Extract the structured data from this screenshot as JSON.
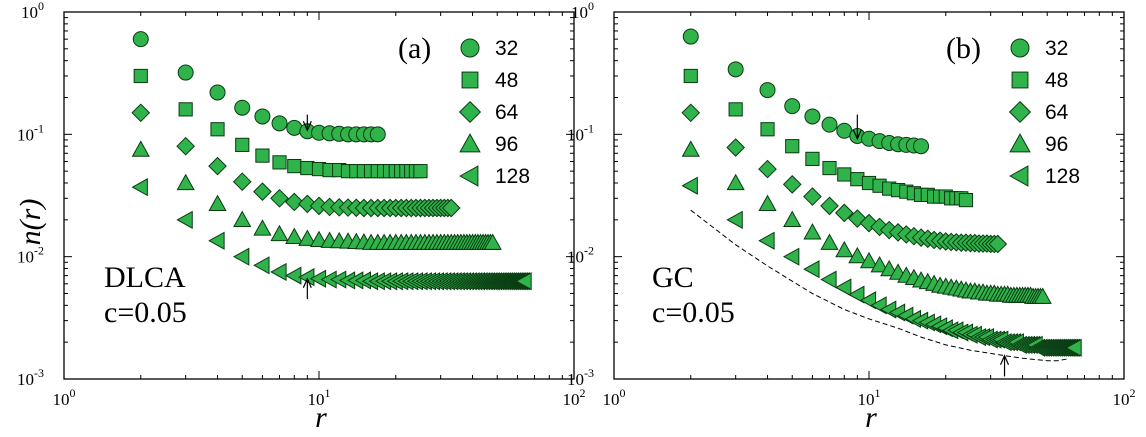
{
  "y_axis_label": "n(r)",
  "x_axis_label": "r",
  "chart_data": [
    {
      "type": "scatter",
      "panel_label": "(a)",
      "annotation": [
        "DLCA",
        "c=0.05"
      ],
      "x_scale": "log",
      "y_scale": "log",
      "xlim": [
        1,
        100
      ],
      "ylim": [
        0.001,
        1
      ],
      "x_ticks": [
        1,
        10,
        100
      ],
      "y_ticks": [
        0.001,
        0.01,
        0.1,
        1
      ],
      "legend_placement": "top-right",
      "grid": false,
      "series": [
        {
          "name": "32",
          "marker": "circle",
          "x_start": 2,
          "x_end": 17,
          "x": [
            2,
            3,
            4,
            5,
            6,
            7,
            8,
            9,
            10,
            11,
            12,
            13,
            14,
            15,
            16,
            17
          ],
          "y": [
            0.6,
            0.32,
            0.22,
            0.165,
            0.14,
            0.123,
            0.113,
            0.106,
            0.103,
            0.102,
            0.101,
            0.1,
            0.1,
            0.1,
            0.1,
            0.1
          ]
        },
        {
          "name": "48",
          "marker": "square",
          "x_start": 2,
          "x_end": 25,
          "x": [
            2,
            3,
            4,
            5,
            6,
            7,
            8,
            9,
            10,
            11,
            12,
            13,
            14,
            15,
            16,
            17,
            18,
            19,
            20,
            21,
            22,
            23,
            24,
            25
          ],
          "y": [
            0.3,
            0.16,
            0.11,
            0.082,
            0.067,
            0.059,
            0.055,
            0.053,
            0.052,
            0.051,
            0.051,
            0.05,
            0.05,
            0.05,
            0.05,
            0.05,
            0.05,
            0.05,
            0.05,
            0.05,
            0.05,
            0.05,
            0.05,
            0.05
          ]
        },
        {
          "name": "64",
          "marker": "diamond",
          "x_start": 2,
          "x_end": 33,
          "x": [
            2,
            3,
            4,
            5,
            6,
            7,
            8,
            9,
            10,
            11,
            12,
            13,
            14,
            15,
            16,
            17,
            18,
            19,
            20,
            21,
            22,
            23,
            24,
            25,
            26,
            27,
            28,
            29,
            30,
            31,
            32,
            33
          ],
          "y": [
            0.15,
            0.08,
            0.055,
            0.041,
            0.034,
            0.03,
            0.028,
            0.027,
            0.026,
            0.0255,
            0.0253,
            0.0252,
            0.0251,
            0.025,
            0.025,
            0.025,
            0.025,
            0.025,
            0.025,
            0.025,
            0.025,
            0.025,
            0.025,
            0.025,
            0.025,
            0.025,
            0.025,
            0.025,
            0.025,
            0.025,
            0.025,
            0.025
          ]
        },
        {
          "name": "96",
          "marker": "triangle-up",
          "x_start": 2,
          "x_end": 48,
          "x": [
            2,
            3,
            4,
            5,
            6,
            7,
            8,
            9,
            10,
            11,
            12,
            13,
            14,
            15,
            16,
            17,
            18,
            19,
            20,
            21,
            22,
            23,
            24,
            25,
            26,
            27,
            28,
            29,
            30,
            31,
            32,
            33,
            34,
            35,
            36,
            37,
            38,
            39,
            40,
            41,
            42,
            43,
            44,
            45,
            46,
            47,
            48
          ],
          "y": [
            0.075,
            0.04,
            0.027,
            0.02,
            0.017,
            0.0153,
            0.0145,
            0.014,
            0.0137,
            0.0135,
            0.0134,
            0.0133,
            0.0132,
            0.0131,
            0.013,
            0.013,
            0.013,
            0.013,
            0.013,
            0.013,
            0.013,
            0.013,
            0.013,
            0.013,
            0.013,
            0.013,
            0.013,
            0.013,
            0.013,
            0.013,
            0.013,
            0.013,
            0.013,
            0.013,
            0.013,
            0.013,
            0.013,
            0.013,
            0.013,
            0.013,
            0.013,
            0.013,
            0.013,
            0.013,
            0.013,
            0.013,
            0.013
          ]
        },
        {
          "name": "128",
          "marker": "triangle-left",
          "x_start": 2,
          "x_end": 64,
          "x": [
            2,
            3,
            4,
            5,
            6,
            7,
            8,
            9,
            10,
            11,
            12,
            13,
            14,
            15,
            16,
            17,
            18,
            19,
            20,
            21,
            22,
            23,
            24,
            25,
            26,
            27,
            28,
            29,
            30,
            31,
            32,
            33,
            34,
            35,
            36,
            37,
            38,
            39,
            40,
            41,
            42,
            43,
            44,
            45,
            46,
            47,
            48,
            49,
            50,
            51,
            52,
            53,
            54,
            55,
            56,
            57,
            58,
            59,
            60,
            61,
            62,
            63,
            64
          ],
          "y": [
            0.037,
            0.02,
            0.0135,
            0.01,
            0.0085,
            0.0075,
            0.007,
            0.0068,
            0.0066,
            0.0065,
            0.0065,
            0.0064,
            0.0064,
            0.0064,
            0.0063,
            0.0063,
            0.0063,
            0.0063,
            0.0063,
            0.0063,
            0.0063,
            0.0063,
            0.0063,
            0.0063,
            0.0063,
            0.0063,
            0.0063,
            0.0063,
            0.0063,
            0.0063,
            0.0063,
            0.0063,
            0.0063,
            0.0063,
            0.0063,
            0.0063,
            0.0063,
            0.0063,
            0.0063,
            0.0063,
            0.0063,
            0.0063,
            0.0063,
            0.0063,
            0.0063,
            0.0063,
            0.0063,
            0.0063,
            0.0063,
            0.0063,
            0.0063,
            0.0063,
            0.0063,
            0.0063,
            0.0063,
            0.0063,
            0.0063,
            0.0063,
            0.0063,
            0.0063,
            0.0063,
            0.0063,
            0.0063
          ]
        }
      ],
      "arrows": [
        {
          "x": 9,
          "y_tail": 0.145,
          "y_head": 0.108,
          "direction": "down"
        },
        {
          "x": 9,
          "y_tail": 0.0045,
          "y_head": 0.0066,
          "direction": "up"
        }
      ]
    },
    {
      "type": "scatter",
      "panel_label": "(b)",
      "annotation": [
        "GC",
        "c=0.05"
      ],
      "x_scale": "log",
      "y_scale": "log",
      "xlim": [
        1,
        100
      ],
      "ylim": [
        0.001,
        1
      ],
      "x_ticks": [
        1,
        10,
        100
      ],
      "y_ticks": [
        0.001,
        0.01,
        0.1,
        1
      ],
      "legend_placement": "top-right",
      "grid": false,
      "series": [
        {
          "name": "32",
          "marker": "circle",
          "x": [
            2,
            3,
            4,
            5,
            6,
            7,
            8,
            9,
            10,
            11,
            12,
            13,
            14,
            15,
            16
          ],
          "y": [
            0.63,
            0.34,
            0.23,
            0.17,
            0.14,
            0.12,
            0.107,
            0.097,
            0.092,
            0.088,
            0.085,
            0.083,
            0.082,
            0.081,
            0.08
          ]
        },
        {
          "name": "48",
          "marker": "square",
          "x": [
            2,
            3,
            4,
            5,
            6,
            7,
            8,
            9,
            10,
            11,
            12,
            13,
            14,
            15,
            16,
            17,
            18,
            19,
            20,
            21,
            22,
            23,
            24
          ],
          "y": [
            0.3,
            0.16,
            0.11,
            0.08,
            0.063,
            0.053,
            0.047,
            0.043,
            0.04,
            0.038,
            0.036,
            0.035,
            0.034,
            0.033,
            0.032,
            0.032,
            0.031,
            0.031,
            0.031,
            0.03,
            0.03,
            0.03,
            0.029
          ]
        },
        {
          "name": "64",
          "marker": "diamond",
          "x": [
            2,
            3,
            4,
            5,
            6,
            7,
            8,
            9,
            10,
            11,
            12,
            13,
            14,
            15,
            16,
            17,
            18,
            19,
            20,
            21,
            22,
            23,
            24,
            25,
            26,
            27,
            28,
            29,
            30,
            31,
            32
          ],
          "y": [
            0.15,
            0.078,
            0.052,
            0.039,
            0.031,
            0.026,
            0.0228,
            0.0205,
            0.0188,
            0.0175,
            0.0165,
            0.0158,
            0.0152,
            0.0147,
            0.0143,
            0.014,
            0.0137,
            0.0135,
            0.0133,
            0.0132,
            0.0131,
            0.013,
            0.013,
            0.0129,
            0.0129,
            0.0128,
            0.0128,
            0.0128,
            0.0127,
            0.0127,
            0.0127
          ]
        },
        {
          "name": "96",
          "marker": "triangle-up",
          "x": [
            2,
            3,
            4,
            5,
            6,
            7,
            8,
            9,
            10,
            11,
            12,
            13,
            14,
            15,
            16,
            17,
            18,
            19,
            20,
            21,
            22,
            23,
            24,
            25,
            26,
            27,
            28,
            29,
            30,
            31,
            32,
            33,
            34,
            35,
            36,
            37,
            38,
            39,
            40,
            41,
            42,
            43,
            44,
            45,
            46,
            47,
            48
          ],
          "y": [
            0.075,
            0.04,
            0.027,
            0.02,
            0.0158,
            0.013,
            0.0113,
            0.0101,
            0.0092,
            0.0085,
            0.0079,
            0.0074,
            0.007,
            0.0067,
            0.0064,
            0.0062,
            0.006,
            0.0058,
            0.0057,
            0.0056,
            0.0055,
            0.0054,
            0.0053,
            0.0052,
            0.0052,
            0.0051,
            0.0051,
            0.005,
            0.005,
            0.005,
            0.0049,
            0.0049,
            0.0049,
            0.0049,
            0.0048,
            0.0048,
            0.0048,
            0.0048,
            0.0048,
            0.0048,
            0.0048,
            0.0048,
            0.0047,
            0.0047,
            0.0047,
            0.0047,
            0.0047
          ]
        },
        {
          "name": "128",
          "marker": "triangle-left",
          "x": [
            2,
            3,
            4,
            5,
            6,
            7,
            8,
            9,
            10,
            11,
            12,
            13,
            14,
            15,
            16,
            17,
            18,
            19,
            20,
            21,
            22,
            23,
            24,
            25,
            26,
            27,
            28,
            29,
            30,
            31,
            32,
            33,
            34,
            35,
            36,
            37,
            38,
            39,
            40,
            41,
            42,
            43,
            44,
            45,
            46,
            47,
            48,
            49,
            50,
            51,
            52,
            53,
            54,
            55,
            56,
            57,
            58,
            59,
            60,
            61,
            62,
            63,
            64
          ],
          "y": [
            0.038,
            0.02,
            0.0135,
            0.01,
            0.0079,
            0.0065,
            0.0056,
            0.0049,
            0.0044,
            0.004,
            0.0037,
            0.0035,
            0.0033,
            0.0031,
            0.003,
            0.0029,
            0.0028,
            0.0027,
            0.0026,
            0.0025,
            0.0025,
            0.0024,
            0.0024,
            0.0023,
            0.0023,
            0.0022,
            0.0022,
            0.0022,
            0.0021,
            0.0021,
            0.0021,
            0.0021,
            0.002,
            0.002,
            0.002,
            0.002,
            0.002,
            0.0019,
            0.0019,
            0.0019,
            0.0019,
            0.0019,
            0.0019,
            0.0019,
            0.0018,
            0.0018,
            0.0018,
            0.0018,
            0.0018,
            0.0018,
            0.0018,
            0.0018,
            0.0018,
            0.0018,
            0.0018,
            0.0018,
            0.0018,
            0.0018,
            0.0018,
            0.0018,
            0.0018,
            0.0018,
            0.0018
          ]
        }
      ],
      "dashed_curve": {
        "x": [
          2,
          3,
          4,
          5,
          6,
          8,
          10,
          13,
          16,
          20,
          25,
          30,
          35,
          40,
          45,
          50,
          55,
          60
        ],
        "y": [
          0.024,
          0.0125,
          0.0084,
          0.0063,
          0.005,
          0.0037,
          0.0031,
          0.0026,
          0.0022,
          0.0019,
          0.00172,
          0.00162,
          0.00154,
          0.00148,
          0.00144,
          0.00141,
          0.00141,
          0.00146
        ]
      },
      "arrows": [
        {
          "x": 9,
          "y_tail": 0.145,
          "y_head": 0.092,
          "direction": "down"
        },
        {
          "x": 34,
          "y_tail": 0.00105,
          "y_head": 0.00155,
          "direction": "up"
        }
      ]
    }
  ]
}
